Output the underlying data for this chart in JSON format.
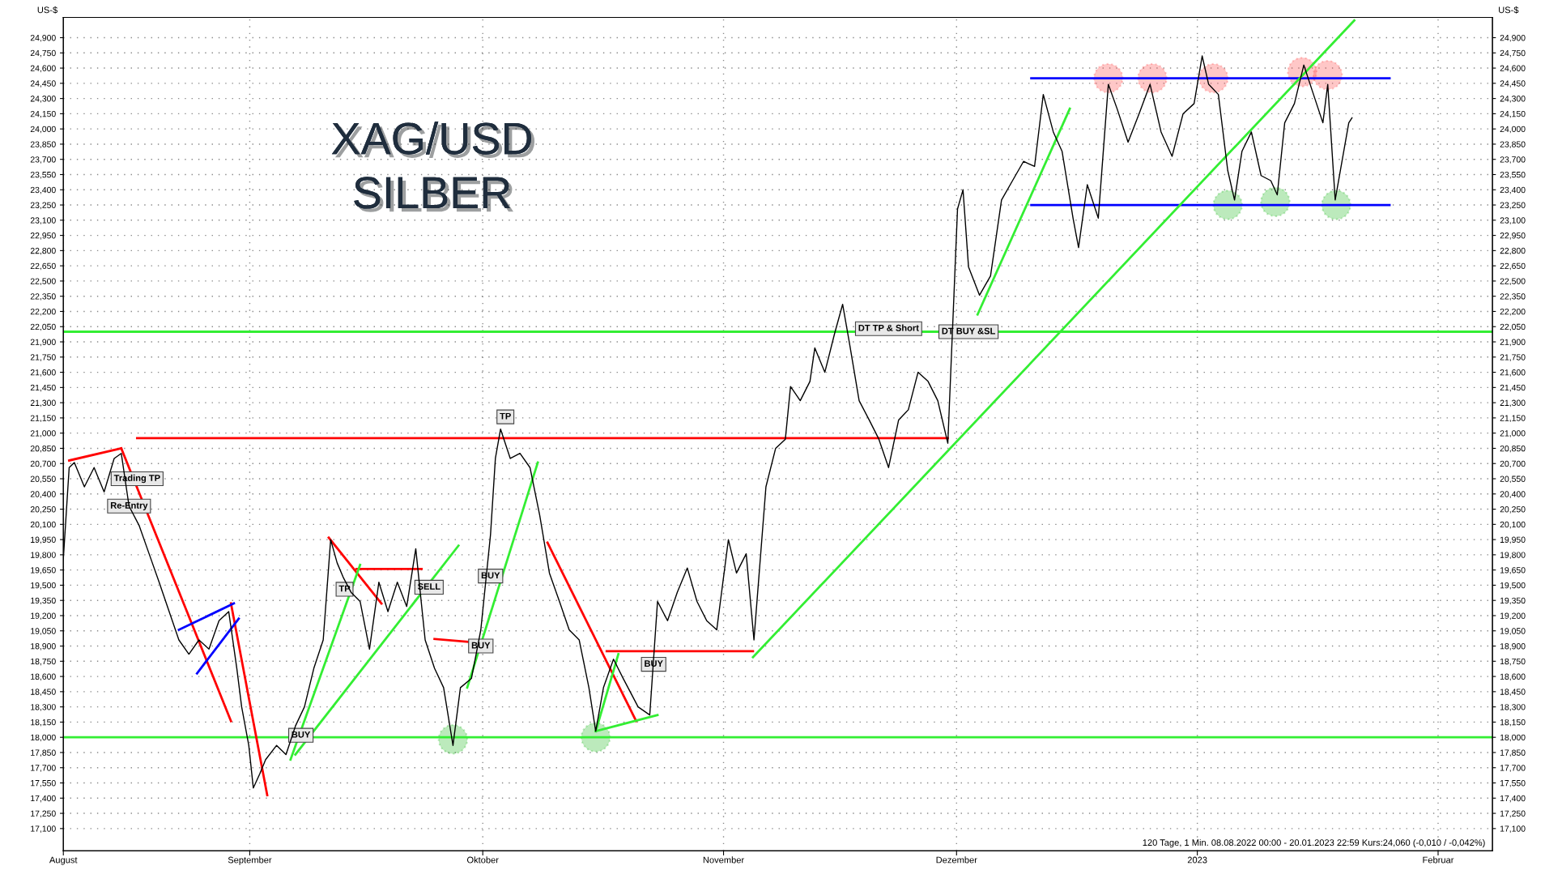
{
  "chart_data": {
    "type": "line",
    "title": "XAG/USD",
    "subtitle": "SILBER",
    "ylabel": "US-$",
    "y2label": "US-$",
    "xlim": [
      "2022-08-08T00:00",
      "2023-02-08T00:00"
    ],
    "xticks": [
      {
        "value": "2022-08-08T00:00",
        "label": "August"
      },
      {
        "value": "2022-09-01T00:00",
        "label": "September"
      },
      {
        "value": "2022-10-01T00:00",
        "label": "Oktober"
      },
      {
        "value": "2022-11-01T00:00",
        "label": "November"
      },
      {
        "value": "2022-12-01T00:00",
        "label": "Dezember"
      },
      {
        "value": "2023-01-01T00:00",
        "label": "2023"
      },
      {
        "value": "2023-02-01T00:00",
        "label": "Februar"
      }
    ],
    "ylim": [
      16880,
      25100
    ],
    "yticks": [
      {
        "value": 17100,
        "label": "17,100"
      },
      {
        "value": 17250,
        "label": "17,250"
      },
      {
        "value": 17400,
        "label": "17,400"
      },
      {
        "value": 17550,
        "label": "17,550"
      },
      {
        "value": 17700,
        "label": "17,700"
      },
      {
        "value": 17850,
        "label": "17,850"
      },
      {
        "value": 18000,
        "label": "18,000"
      },
      {
        "value": 18150,
        "label": "18,150"
      },
      {
        "value": 18300,
        "label": "18,300"
      },
      {
        "value": 18450,
        "label": "18,450"
      },
      {
        "value": 18600,
        "label": "18,600"
      },
      {
        "value": 18750,
        "label": "18,750"
      },
      {
        "value": 18900,
        "label": "18,900"
      },
      {
        "value": 19050,
        "label": "19,050"
      },
      {
        "value": 19200,
        "label": "19,200"
      },
      {
        "value": 19350,
        "label": "19,350"
      },
      {
        "value": 19500,
        "label": "19,500"
      },
      {
        "value": 19650,
        "label": "19,650"
      },
      {
        "value": 19800,
        "label": "19,800"
      },
      {
        "value": 19950,
        "label": "19,950"
      },
      {
        "value": 20100,
        "label": "20,100"
      },
      {
        "value": 20250,
        "label": "20,250"
      },
      {
        "value": 20400,
        "label": "20,400"
      },
      {
        "value": 20550,
        "label": "20,550"
      },
      {
        "value": 20700,
        "label": "20,700"
      },
      {
        "value": 20850,
        "label": "20,850"
      },
      {
        "value": 21000,
        "label": "21,000"
      },
      {
        "value": 21150,
        "label": "21,150"
      },
      {
        "value": 21300,
        "label": "21,300"
      },
      {
        "value": 21450,
        "label": "21,450"
      },
      {
        "value": 21600,
        "label": "21,600"
      },
      {
        "value": 21750,
        "label": "21,750"
      },
      {
        "value": 21900,
        "label": "21,900"
      },
      {
        "value": 22050,
        "label": "22,050"
      },
      {
        "value": 22200,
        "label": "22,200"
      },
      {
        "value": 22350,
        "label": "22,350"
      },
      {
        "value": 22500,
        "label": "22,500"
      },
      {
        "value": 22650,
        "label": "22,650"
      },
      {
        "value": 22800,
        "label": "22,800"
      },
      {
        "value": 22950,
        "label": "22,950"
      },
      {
        "value": 23100,
        "label": "23,100"
      },
      {
        "value": 23250,
        "label": "23,250"
      },
      {
        "value": 23400,
        "label": "23,400"
      },
      {
        "value": 23550,
        "label": "23,550"
      },
      {
        "value": 23700,
        "label": "23,700"
      },
      {
        "value": 23850,
        "label": "23,850"
      },
      {
        "value": 24000,
        "label": "24,000"
      },
      {
        "value": 24150,
        "label": "24,150"
      },
      {
        "value": 24300,
        "label": "24,300"
      },
      {
        "value": 24450,
        "label": "24,450"
      },
      {
        "value": 24600,
        "label": "24,600"
      },
      {
        "value": 24750,
        "label": "24,750"
      },
      {
        "value": 24900,
        "label": "24,900"
      }
    ],
    "y2lim": [
      16880,
      25100
    ],
    "y2ticks": [
      {
        "value": 17100,
        "label": "17,100"
      },
      {
        "value": 17250,
        "label": "17,250"
      },
      {
        "value": 17400,
        "label": "17,400"
      },
      {
        "value": 17550,
        "label": "17,550"
      },
      {
        "value": 17700,
        "label": "17,700"
      },
      {
        "value": 17850,
        "label": "17,850"
      },
      {
        "value": 18000,
        "label": "18,000"
      },
      {
        "value": 18150,
        "label": "18,150"
      },
      {
        "value": 18300,
        "label": "18,300"
      },
      {
        "value": 18450,
        "label": "18,450"
      },
      {
        "value": 18600,
        "label": "18,600"
      },
      {
        "value": 18750,
        "label": "18,750"
      },
      {
        "value": 18900,
        "label": "18,900"
      },
      {
        "value": 19050,
        "label": "19,050"
      },
      {
        "value": 19200,
        "label": "19,200"
      },
      {
        "value": 19350,
        "label": "19,350"
      },
      {
        "value": 19500,
        "label": "19,500"
      },
      {
        "value": 19650,
        "label": "19,650"
      },
      {
        "value": 19800,
        "label": "19,800"
      },
      {
        "value": 19950,
        "label": "19,950"
      },
      {
        "value": 20100,
        "label": "20,100"
      },
      {
        "value": 20250,
        "label": "20,250"
      },
      {
        "value": 20400,
        "label": "20,400"
      },
      {
        "value": 20550,
        "label": "20,550"
      },
      {
        "value": 20700,
        "label": "20,700"
      },
      {
        "value": 20850,
        "label": "20,850"
      },
      {
        "value": 21000,
        "label": "21,000"
      },
      {
        "value": 21150,
        "label": "21,150"
      },
      {
        "value": 21300,
        "label": "21,300"
      },
      {
        "value": 21450,
        "label": "21,450"
      },
      {
        "value": 21600,
        "label": "21,600"
      },
      {
        "value": 21750,
        "label": "21,750"
      },
      {
        "value": 21900,
        "label": "21,900"
      },
      {
        "value": 22050,
        "label": "22,050"
      },
      {
        "value": 22200,
        "label": "22,200"
      },
      {
        "value": 22350,
        "label": "22,350"
      },
      {
        "value": 22500,
        "label": "22,500"
      },
      {
        "value": 22650,
        "label": "22,650"
      },
      {
        "value": 22800,
        "label": "22,800"
      },
      {
        "value": 22950,
        "label": "22,950"
      },
      {
        "value": 23100,
        "label": "23,100"
      },
      {
        "value": 23250,
        "label": "23,250"
      },
      {
        "value": 23400,
        "label": "23,400"
      },
      {
        "value": 23550,
        "label": "23,550"
      },
      {
        "value": 23700,
        "label": "23,700"
      },
      {
        "value": 23850,
        "label": "23,850"
      },
      {
        "value": 24000,
        "label": "24,000"
      },
      {
        "value": 24150,
        "label": "24,150"
      },
      {
        "value": 24300,
        "label": "24,300"
      },
      {
        "value": 24450,
        "label": "24,450"
      },
      {
        "value": 24600,
        "label": "24,600"
      },
      {
        "value": 24750,
        "label": "24,750"
      },
      {
        "value": 24900,
        "label": "24,900"
      }
    ],
    "grid": true,
    "line_style": "solid",
    "series": [
      {
        "color": "#000000",
        "x": [
          "2022-08-08T00:00",
          "2022-08-08T18:00",
          "2022-08-09T10:00",
          "2022-08-10T17:00",
          "2022-08-11T23:00",
          "2022-08-13T06:00",
          "2022-08-14T13:00",
          "2022-08-15T11:00",
          "2022-08-16T11:00",
          "2022-08-17T18:00",
          "2022-08-19T01:00",
          "2022-08-20T08:00",
          "2022-08-21T15:00",
          "2022-08-22T21:00",
          "2022-08-24T04:00",
          "2022-08-25T11:00",
          "2022-08-26T18:00",
          "2022-08-28T01:00",
          "2022-08-29T07:00",
          "2022-08-30T08:00",
          "2022-08-30T23:00",
          "2022-08-31T21:00",
          "2022-09-01T11:00",
          "2022-09-02T07:00",
          "2022-09-03T01:00",
          "2022-09-04T11:00",
          "2022-09-05T16:00",
          "2022-09-06T21:00",
          "2022-09-08T01:00",
          "2022-09-09T06:00",
          "2022-09-10T11:00",
          "2022-09-11T10:00",
          "2022-09-12T06:00",
          "2022-09-13T02:00",
          "2022-09-14T01:00",
          "2022-09-15T05:00",
          "2022-09-16T10:00",
          "2022-09-17T15:00",
          "2022-09-18T19:00",
          "2022-09-20T00:00",
          "2022-09-21T05:00",
          "2022-09-22T09:00",
          "2022-09-23T14:00",
          "2022-09-24T19:00",
          "2022-09-25T23:00",
          "2022-09-27T04:00",
          "2022-09-28T03:00",
          "2022-09-29T13:00",
          "2022-09-30T18:00",
          "2022-10-02T00:00",
          "2022-10-02T15:00",
          "2022-10-03T07:00",
          "2022-10-04T13:00",
          "2022-10-05T19:00",
          "2022-10-07T02:00",
          "2022-10-08T08:00",
          "2022-10-09T14:00",
          "2022-10-10T21:00",
          "2022-10-12T03:00",
          "2022-10-13T10:00",
          "2022-10-14T16:00",
          "2022-10-15T13:00",
          "2022-10-16T13:00",
          "2022-10-17T20:00",
          "2022-10-19T02:00",
          "2022-10-21T00:00",
          "2022-10-22T12:00",
          "2022-10-23T12:00",
          "2022-10-24T19:00",
          "2022-10-26T01:00",
          "2022-10-27T08:00",
          "2022-10-28T14:00",
          "2022-10-29T20:00",
          "2022-10-31T03:00",
          "2022-11-01T15:00",
          "2022-11-02T16:00",
          "2022-11-03T22:00",
          "2022-11-04T22:00",
          "2022-11-06T11:00",
          "2022-11-07T17:00",
          "2022-11-08T23:00",
          "2022-11-09T15:00",
          "2022-11-10T21:00",
          "2022-11-12T03:00",
          "2022-11-12T18:00",
          "2022-11-14T01:00",
          "2022-11-15T07:00",
          "2022-11-16T08:00",
          "2022-11-17T05:00",
          "2022-11-18T11:00",
          "2022-11-19T18:00",
          "2022-11-21T00:00",
          "2022-11-22T06:00",
          "2022-11-23T13:00",
          "2022-11-24T19:00",
          "2022-11-26T01:00",
          "2022-11-27T08:00",
          "2022-11-28T14:00",
          "2022-11-29T21:00",
          "2022-12-01T03:00",
          "2022-12-01T20:00",
          "2022-12-02T13:00",
          "2022-12-03T23:00",
          "2022-12-05T09:00",
          "2022-12-06T19:00",
          "2022-12-08T05:00",
          "2022-12-09T15:00",
          "2022-12-11T01:00",
          "2022-12-12T04:00",
          "2022-12-13T11:00",
          "2022-12-14T14:00",
          "2022-12-16T00:00",
          "2022-12-16T17:00",
          "2022-12-17T20:00",
          "2022-12-19T06:00",
          "2022-12-20T13:00",
          "2022-12-21T16:00",
          "2022-12-23T02:00",
          "2022-12-24T12:00",
          "2022-12-25T22:00",
          "2022-12-27T08:00",
          "2022-12-28T18:00",
          "2022-12-30T04:00",
          "2022-12-31T14:00",
          "2023-01-01T15:00",
          "2023-01-02T11:00",
          "2023-01-03T17:00",
          "2023-01-04T22:00",
          "2023-01-05T19:00",
          "2023-01-06T18:00",
          "2023-01-07T23:00",
          "2023-01-09T05:00",
          "2023-01-10T11:00",
          "2023-01-11T07:00",
          "2023-01-12T06:00",
          "2023-01-13T12:00",
          "2023-01-14T17:00",
          "2023-01-15T23:00",
          "2023-01-17T04:00",
          "2023-01-17T19:00",
          "2023-01-18T18:00",
          "2023-01-19T15:00",
          "2023-01-20T12:00",
          "2023-01-20T22:00"
        ],
        "values": [
          19760,
          20660,
          20710,
          20470,
          20660,
          20420,
          20750,
          20800,
          20280,
          20090,
          19810,
          19530,
          19240,
          18960,
          18820,
          18960,
          18870,
          19150,
          19240,
          18680,
          18300,
          17920,
          17500,
          17640,
          17780,
          17920,
          17830,
          18110,
          18300,
          18680,
          18960,
          19950,
          19720,
          19570,
          19430,
          19340,
          18870,
          19530,
          19240,
          19530,
          19290,
          19860,
          18960,
          18680,
          18490,
          17920,
          18490,
          18580,
          19060,
          20000,
          20750,
          21040,
          20750,
          20800,
          20660,
          20190,
          19620,
          19340,
          19060,
          18960,
          18490,
          18060,
          18490,
          18770,
          18580,
          18300,
          18220,
          19340,
          19150,
          19430,
          19670,
          19340,
          19150,
          19060,
          19950,
          19620,
          19810,
          18960,
          20470,
          20850,
          20940,
          21460,
          21320,
          21510,
          21840,
          21600,
          21980,
          22270,
          21890,
          21320,
          21130,
          20940,
          20660,
          21130,
          21230,
          21600,
          21510,
          21320,
          20900,
          23210,
          23400,
          22640,
          22360,
          22550,
          23300,
          23490,
          23680,
          23630,
          24340,
          23970,
          23780,
          23120,
          22830,
          23450,
          23120,
          24440,
          24200,
          23870,
          24150,
          24440,
          23970,
          23730,
          24150,
          24250,
          24720,
          24440,
          24340,
          23590,
          23300,
          23780,
          23970,
          23540,
          23490,
          23350,
          24060,
          24250,
          24630,
          24340,
          24060,
          24440,
          23300,
          23680,
          24060,
          24110
        ]
      },
      {
        "color": "#ff0000",
        "x": [
          "2022-08-08T18:00",
          "2022-08-15T11:00"
        ],
        "values": [
          20730,
          20850
        ]
      },
      {
        "color": "#ff0000",
        "x": [
          "2022-08-15T11:00",
          "2022-08-29T14:00"
        ],
        "values": [
          20850,
          18160
        ]
      },
      {
        "color": "#ff0000",
        "x": [
          "2022-08-29T14:00",
          "2022-09-03T06:00"
        ],
        "values": [
          19320,
          17430
        ]
      },
      {
        "color": "#ff0000",
        "x": [
          "2022-08-17T12:00",
          "2022-11-29T21:00"
        ],
        "values": [
          20950,
          20950
        ]
      },
      {
        "color": "#ff0000",
        "x": [
          "2022-09-11T04:00",
          "2022-09-17T23:00"
        ],
        "values": [
          19970,
          19320
        ]
      },
      {
        "color": "#ff0000",
        "x": [
          "2022-09-14T18:00",
          "2022-09-23T03:00"
        ],
        "values": [
          19660,
          19660
        ]
      },
      {
        "color": "#ff0000",
        "x": [
          "2022-09-24T19:00",
          "2022-09-29T08:00"
        ],
        "values": [
          18970,
          18940
        ]
      },
      {
        "color": "#ff0000",
        "x": [
          "2022-10-09T08:00",
          "2022-10-20T18:00"
        ],
        "values": [
          19920,
          18160
        ]
      },
      {
        "color": "#ff0000",
        "x": [
          "2022-10-16T23:00",
          "2022-11-04T19:00"
        ],
        "values": [
          18850,
          18850
        ]
      },
      {
        "color": "#0000ff",
        "x": [
          "2022-08-22T21:00",
          "2022-08-29T23:00"
        ],
        "values": [
          19060,
          19320
        ]
      },
      {
        "color": "#0000ff",
        "x": [
          "2022-08-25T05:00",
          "2022-08-30T14:00"
        ],
        "values": [
          18630,
          19170
        ]
      },
      {
        "color": "#0000ff",
        "x": [
          "2022-12-10T15:00",
          "2023-01-25T18:00"
        ],
        "values": [
          24500,
          24500
        ]
      },
      {
        "color": "#0000ff",
        "x": [
          "2022-12-10T15:00",
          "2023-01-25T18:00"
        ],
        "values": [
          23250,
          23250
        ]
      },
      {
        "color": "#33ee33",
        "x": [
          "2022-09-06T06:00",
          "2022-09-15T05:00"
        ],
        "values": [
          17780,
          19700
        ]
      },
      {
        "color": "#33ee33",
        "x": [
          "2022-09-06T21:00",
          "2022-09-27T21:00"
        ],
        "values": [
          17830,
          19890
        ]
      },
      {
        "color": "#33ee33",
        "x": [
          "2022-09-29T00:00",
          "2022-10-08T02:00"
        ],
        "values": [
          18490,
          20710
        ]
      },
      {
        "color": "#33ee33",
        "x": [
          "2022-10-15T13:00",
          "2022-10-23T12:00"
        ],
        "values": [
          18060,
          18220
        ]
      },
      {
        "color": "#33ee33",
        "x": [
          "2022-10-15T13:00",
          "2022-10-18T11:00"
        ],
        "values": [
          18060,
          18820
        ]
      },
      {
        "color": "#33ee33",
        "x": [
          "2022-11-04T19:00",
          "2023-01-21T05:00"
        ],
        "values": [
          18790,
          25070
        ]
      },
      {
        "color": "#33ee33",
        "x": [
          "2022-12-03T17:00",
          "2022-12-15T14:00"
        ],
        "values": [
          22170,
          24200
        ]
      },
      {
        "type": "scatter",
        "marker": "circle",
        "color": "#ff4444",
        "x": [
          "2022-12-20T13:00",
          "2022-12-26T05:00",
          "2023-01-03T02:00",
          "2023-01-14T12:00",
          "2023-01-17T19:00"
        ],
        "values": [
          24500,
          24500,
          24500,
          24560,
          24530
        ]
      },
      {
        "type": "scatter",
        "marker": "circle",
        "color": "#22bb22",
        "x": [
          "2022-09-27T04:00",
          "2022-10-15T13:00",
          "2023-01-04T22:00",
          "2023-01-11T01:00",
          "2023-01-18T21:00"
        ],
        "values": [
          17980,
          18000,
          23250,
          23280,
          23250
        ]
      }
    ],
    "ref_lines": [
      {
        "axis": "y",
        "value": 22000,
        "color": "#33ee33"
      },
      {
        "axis": "y",
        "value": 18000,
        "color": "#33ee33"
      }
    ],
    "annotations": [
      {
        "text": "Re-Entry",
        "x": "2022-08-16T11:00",
        "y": 20280
      },
      {
        "text": "Trading TP",
        "x": "2022-08-17T12:00",
        "y": 20550
      },
      {
        "text": "TP",
        "x": "2022-09-13T05:00",
        "y": 19460
      },
      {
        "text": "BUY",
        "x": "2022-09-07T14:00",
        "y": 18020
      },
      {
        "text": "SELL",
        "x": "2022-09-24T02:00",
        "y": 19480
      },
      {
        "text": "BUY",
        "x": "2022-09-30T18:00",
        "y": 18900
      },
      {
        "text": "BUY",
        "x": "2022-10-02T00:00",
        "y": 19590
      },
      {
        "text": "TP",
        "x": "2022-10-03T22:00",
        "y": 21160
      },
      {
        "text": "BUY",
        "x": "2022-10-23T00:00",
        "y": 18720
      },
      {
        "text": "DT TP & Short",
        "x": "2022-11-22T06:00",
        "y": 22030
      },
      {
        "text": "DT BUY &SL",
        "x": "2022-12-02T13:00",
        "y": 22000
      },
      "120 Tage, 1 Min. 08.08.2022 00:00 - 20.01.2023 22:59 Kurs:24,060 (-0,010 / -0,042%)"
    ]
  }
}
